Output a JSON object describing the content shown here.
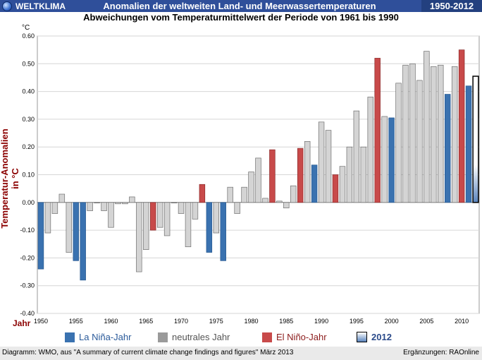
{
  "header": {
    "brand": "WELTKLIMA",
    "title": "Anomalien der weltweiten Land- und Meerwassertemperaturen",
    "years": "1950-2012"
  },
  "subtitle": "Abweichungen vom Temperaturmittelwert der Periode von 1961 bis 1990",
  "colors": {
    "la_nina": "#3a72b0",
    "neutral": "#d4d4d4",
    "el_nino": "#c84a4a",
    "year2012": "#ffffff",
    "header_bg": "#2f4f9a"
  },
  "legend": {
    "la_nina": "La Niña-Jahr",
    "neutral": "neutrales Jahr",
    "el_nino": "El Niño-Jahr",
    "year2012": "2012"
  },
  "footer": {
    "left": "Diagramm: WMO,  aus \"A summary of current climate change findings and figures\" März 2013",
    "right": "Ergänzungen: RAOnline"
  },
  "chart_data": {
    "type": "bar",
    "title": "Abweichungen vom Temperaturmittelwert der Periode von 1961 bis 1990",
    "unit": "°C",
    "xlabel": "Jahr",
    "ylabel": "Temperatur-Anomalien in °C",
    "ylim": [
      -0.4,
      0.6
    ],
    "yticks": [
      "0.60",
      "0.50",
      "0.40",
      "0.30",
      "0.20",
      "0.10",
      "0.00",
      "-0.10",
      "-0.20",
      "-0.30",
      "-0.40"
    ],
    "xticks": [
      "1950",
      "1955",
      "1960",
      "1965",
      "1970",
      "1975",
      "1980",
      "1985",
      "1990",
      "1995",
      "2000",
      "2005",
      "2010"
    ],
    "grid": true,
    "legend_position": "bottom",
    "bars": [
      {
        "year": 1950,
        "value": -0.24,
        "type": "la_nina"
      },
      {
        "year": 1951,
        "value": -0.11,
        "type": "neutral"
      },
      {
        "year": 1952,
        "value": -0.04,
        "type": "neutral"
      },
      {
        "year": 1953,
        "value": 0.03,
        "type": "neutral"
      },
      {
        "year": 1954,
        "value": -0.18,
        "type": "neutral"
      },
      {
        "year": 1955,
        "value": -0.21,
        "type": "la_nina"
      },
      {
        "year": 1956,
        "value": -0.28,
        "type": "la_nina"
      },
      {
        "year": 1957,
        "value": -0.03,
        "type": "neutral"
      },
      {
        "year": 1958,
        "value": 0.0,
        "type": "neutral"
      },
      {
        "year": 1959,
        "value": -0.03,
        "type": "neutral"
      },
      {
        "year": 1960,
        "value": -0.09,
        "type": "neutral"
      },
      {
        "year": 1961,
        "value": -0.005,
        "type": "neutral"
      },
      {
        "year": 1962,
        "value": -0.005,
        "type": "neutral"
      },
      {
        "year": 1963,
        "value": 0.02,
        "type": "neutral"
      },
      {
        "year": 1964,
        "value": -0.25,
        "type": "neutral"
      },
      {
        "year": 1965,
        "value": -0.17,
        "type": "neutral"
      },
      {
        "year": 1966,
        "value": -0.1,
        "type": "el_nino"
      },
      {
        "year": 1967,
        "value": -0.09,
        "type": "neutral"
      },
      {
        "year": 1968,
        "value": -0.12,
        "type": "neutral"
      },
      {
        "year": 1969,
        "value": 0.0,
        "type": "neutral"
      },
      {
        "year": 1970,
        "value": -0.04,
        "type": "neutral"
      },
      {
        "year": 1971,
        "value": -0.16,
        "type": "neutral"
      },
      {
        "year": 1972,
        "value": -0.06,
        "type": "neutral"
      },
      {
        "year": 1973,
        "value": 0.065,
        "type": "el_nino"
      },
      {
        "year": 1974,
        "value": -0.18,
        "type": "la_nina"
      },
      {
        "year": 1975,
        "value": -0.11,
        "type": "neutral"
      },
      {
        "year": 1976,
        "value": -0.21,
        "type": "la_nina"
      },
      {
        "year": 1977,
        "value": 0.055,
        "type": "neutral"
      },
      {
        "year": 1978,
        "value": -0.04,
        "type": "neutral"
      },
      {
        "year": 1979,
        "value": 0.055,
        "type": "neutral"
      },
      {
        "year": 1980,
        "value": 0.11,
        "type": "neutral"
      },
      {
        "year": 1981,
        "value": 0.16,
        "type": "neutral"
      },
      {
        "year": 1982,
        "value": 0.015,
        "type": "neutral"
      },
      {
        "year": 1983,
        "value": 0.19,
        "type": "el_nino"
      },
      {
        "year": 1984,
        "value": 0.005,
        "type": "neutral"
      },
      {
        "year": 1985,
        "value": -0.02,
        "type": "neutral"
      },
      {
        "year": 1986,
        "value": 0.06,
        "type": "neutral"
      },
      {
        "year": 1987,
        "value": 0.195,
        "type": "el_nino"
      },
      {
        "year": 1988,
        "value": 0.22,
        "type": "neutral"
      },
      {
        "year": 1989,
        "value": 0.135,
        "type": "la_nina"
      },
      {
        "year": 1990,
        "value": 0.29,
        "type": "neutral"
      },
      {
        "year": 1991,
        "value": 0.26,
        "type": "neutral"
      },
      {
        "year": 1992,
        "value": 0.1,
        "type": "el_nino"
      },
      {
        "year": 1993,
        "value": 0.13,
        "type": "neutral"
      },
      {
        "year": 1994,
        "value": 0.2,
        "type": "neutral"
      },
      {
        "year": 1995,
        "value": 0.33,
        "type": "neutral"
      },
      {
        "year": 1996,
        "value": 0.2,
        "type": "neutral"
      },
      {
        "year": 1997,
        "value": 0.38,
        "type": "neutral"
      },
      {
        "year": 1998,
        "value": 0.52,
        "type": "el_nino"
      },
      {
        "year": 1999,
        "value": 0.31,
        "type": "neutral"
      },
      {
        "year": 2000,
        "value": 0.305,
        "type": "la_nina"
      },
      {
        "year": 2001,
        "value": 0.43,
        "type": "neutral"
      },
      {
        "year": 2002,
        "value": 0.495,
        "type": "neutral"
      },
      {
        "year": 2003,
        "value": 0.5,
        "type": "neutral"
      },
      {
        "year": 2004,
        "value": 0.44,
        "type": "neutral"
      },
      {
        "year": 2005,
        "value": 0.545,
        "type": "neutral"
      },
      {
        "year": 2006,
        "value": 0.49,
        "type": "neutral"
      },
      {
        "year": 2007,
        "value": 0.495,
        "type": "neutral"
      },
      {
        "year": 2008,
        "value": 0.39,
        "type": "la_nina"
      },
      {
        "year": 2009,
        "value": 0.49,
        "type": "neutral"
      },
      {
        "year": 2010,
        "value": 0.55,
        "type": "el_nino"
      },
      {
        "year": 2011,
        "value": 0.42,
        "type": "la_nina"
      },
      {
        "year": 2012,
        "value": 0.455,
        "type": "year2012"
      }
    ]
  }
}
